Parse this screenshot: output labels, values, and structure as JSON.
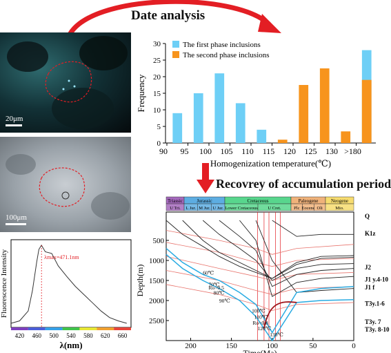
{
  "headings": {
    "top": "Date analysis",
    "bottom": "Recovrey of accumulation period"
  },
  "photos": {
    "photo1_scale": "20μm",
    "photo2_scale": "100μm"
  },
  "colors": {
    "first_phase": "#6ecff6",
    "second_phase": "#f7941d",
    "arrow": "#e31e24"
  },
  "chart_data": [
    {
      "type": "bar",
      "ylabel": "Frequency",
      "xlabel": "Homogenization temperature(℃)",
      "x_ticks": [
        "90",
        "95",
        "100",
        "105",
        "110",
        "115",
        "120",
        "125",
        "130",
        ">180"
      ],
      "categories": [
        "92.5",
        "97.5",
        "102.5",
        "107.5",
        "112.5",
        "117.5",
        "122.5",
        "127.5",
        "132.5",
        ">180"
      ],
      "series": [
        {
          "name": "The first phase inclusions",
          "values": [
            9,
            15,
            21,
            12,
            4,
            0,
            0,
            0,
            0,
            28
          ]
        },
        {
          "name": "The second phase inclusions",
          "values": [
            0,
            0,
            0,
            0,
            0,
            1,
            17.5,
            22.5,
            3.5,
            19
          ]
        }
      ],
      "ylim": [
        0,
        30
      ]
    },
    {
      "type": "line",
      "xlabel": "Time(Ma)",
      "ylabel": "Depth(m)",
      "xlim": [
        230,
        0
      ],
      "ylim": [
        0,
        3000
      ],
      "x_ticks": [
        "200",
        "150",
        "100",
        "50",
        "0"
      ],
      "y_ticks": [
        "500",
        "1000",
        "1500",
        "2000",
        "2500"
      ],
      "periods": [
        {
          "name": "Triassic",
          "sub": [
            "U Tri."
          ]
        },
        {
          "name": "Jurassic",
          "sub": [
            "L Jur.",
            "M Jur.",
            "U Jur."
          ]
        },
        {
          "name": "Cretaceous",
          "sub": [
            "Lower Cretaceous",
            "U Cret."
          ]
        },
        {
          "name": "Paleogene",
          "sub": [
            "Plc",
            "Eocene",
            "Oli"
          ]
        },
        {
          "name": "Neogene",
          "sub": [
            "Mio."
          ]
        }
      ],
      "formations": [
        "Q",
        "K1z",
        "J2",
        "J1 y.4-10",
        "J1 f",
        "T3y.1-6",
        "T3y. 7",
        "T3y. 8-10"
      ],
      "isotherms": [
        "60℃",
        "70℃",
        "80℃",
        "90℃",
        "100℃",
        "110℃",
        "120℃",
        "130℃"
      ],
      "ro_labels": [
        "Ro=0.5",
        "Ro=0.8"
      ],
      "burial_curves": [
        {
          "x": [
            230,
            210,
            185,
            165,
            140,
            120,
            100,
            70,
            40,
            0
          ],
          "y": [
            0,
            350,
            650,
            900,
            1150,
            1300,
            1450,
            1050,
            900,
            880
          ]
        },
        {
          "x": [
            210,
            185,
            165,
            140,
            120,
            100,
            70,
            40,
            0
          ],
          "y": [
            0,
            500,
            800,
            1050,
            1250,
            1450,
            1100,
            950,
            920
          ]
        },
        {
          "x": [
            185,
            165,
            140,
            120,
            100,
            70,
            40,
            0
          ],
          "y": [
            0,
            350,
            700,
            1000,
            1500,
            1200,
            1100,
            1080
          ]
        },
        {
          "x": [
            165,
            140,
            120,
            100,
            70,
            40,
            0
          ],
          "y": [
            0,
            400,
            750,
            1650,
            1350,
            1250,
            1200
          ]
        },
        {
          "x": [
            140,
            120,
            100,
            70,
            40,
            0
          ],
          "y": [
            0,
            500,
            1900,
            1550,
            1450,
            1400
          ]
        },
        {
          "x": [
            120,
            100,
            70,
            40,
            0
          ],
          "y": [
            0,
            1000,
            1800,
            1750,
            1700
          ]
        },
        {
          "x": [
            100,
            70,
            40,
            0
          ],
          "y": [
            0,
            400,
            350,
            350
          ]
        }
      ],
      "highlight_curves": [
        {
          "x": [
            230,
            210,
            185,
            165,
            140,
            120,
            100,
            70,
            40,
            0
          ],
          "y": [
            700,
            1050,
            1350,
            1500,
            1800,
            2100,
            2800,
            1800,
            1700,
            1650
          ]
        },
        {
          "x": [
            230,
            210,
            185,
            165,
            140,
            120,
            100,
            70,
            40,
            0
          ],
          "y": [
            850,
            1200,
            1500,
            1700,
            2000,
            2400,
            3000,
            2050,
            2000,
            1980
          ]
        }
      ],
      "isotherm_curves": [
        {
          "x": [
            230,
            165,
            120,
            100,
            70,
            0
          ],
          "y": [
            250,
            500,
            700,
            850,
            700,
            600
          ]
        },
        {
          "x": [
            230,
            165,
            120,
            100,
            70,
            0
          ],
          "y": [
            550,
            800,
            1050,
            1150,
            1000,
            950
          ]
        },
        {
          "x": [
            230,
            165,
            120,
            100,
            70,
            0
          ],
          "y": [
            900,
            1200,
            1400,
            1500,
            1350,
            1300
          ]
        },
        {
          "x": [
            230,
            165,
            120,
            100,
            70,
            0
          ],
          "y": [
            1250,
            1500,
            1750,
            1850,
            1700,
            1650
          ]
        },
        {
          "x": [
            230,
            165,
            120,
            100,
            70,
            0
          ],
          "y": [
            1600,
            1850,
            2100,
            2250,
            2100,
            2050
          ]
        }
      ],
      "event_lines_ma": [
        118,
        110,
        104,
        96,
        90
      ]
    },
    {
      "type": "line",
      "xlabel": "λ(nm)",
      "ylabel": "Fluorescence Intensity",
      "x_ticks": [
        "420",
        "460",
        "500",
        "540",
        "580",
        "620",
        "660"
      ],
      "xlim": [
        400,
        680
      ],
      "peak_label": "λmax=471.1nm",
      "peak_x": 471.1,
      "x": [
        400,
        420,
        440,
        450,
        460,
        465,
        471,
        480,
        495,
        510,
        530,
        550,
        570,
        590,
        610,
        630,
        650,
        670
      ],
      "y": [
        0.05,
        0.08,
        0.2,
        0.45,
        0.8,
        0.95,
        1.0,
        0.92,
        0.9,
        0.75,
        0.62,
        0.5,
        0.4,
        0.3,
        0.2,
        0.12,
        0.08,
        0.05
      ]
    }
  ]
}
